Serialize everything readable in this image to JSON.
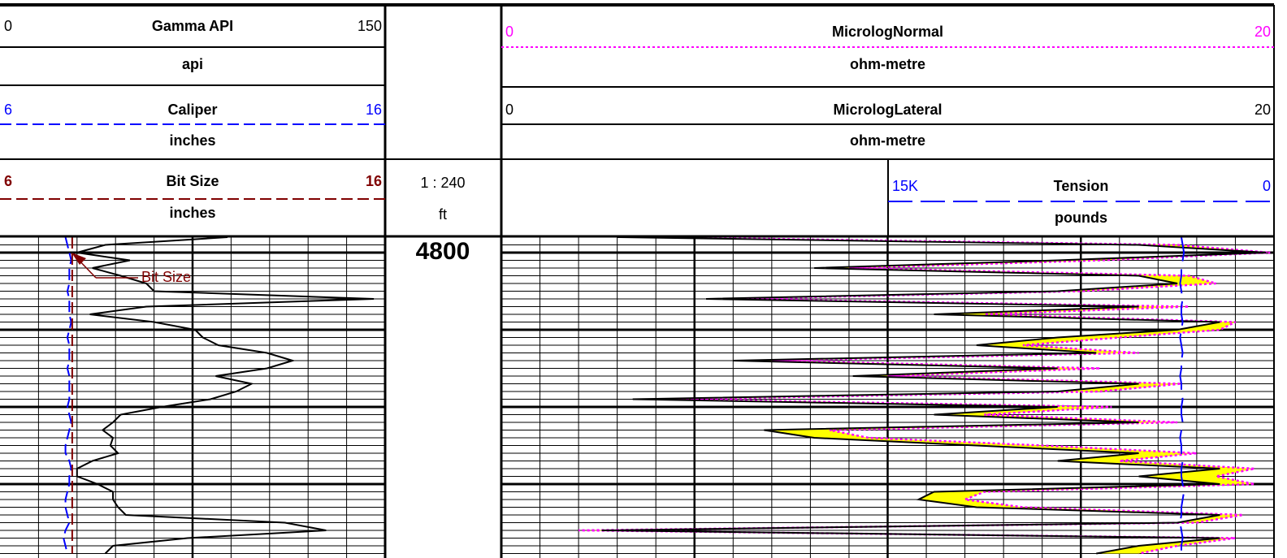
{
  "header": {
    "scale": "1 : 240",
    "depth_unit": "ft"
  },
  "chart_data": [
    {
      "type": "line",
      "orientation": "vertical",
      "x": [
        4796,
        4798,
        4800,
        4802,
        4804,
        4806,
        4808,
        4810,
        4812,
        4814,
        4816,
        4818,
        4820,
        4822,
        4824,
        4826,
        4828,
        4830,
        4832,
        4834,
        4836,
        4838,
        4840,
        4842,
        4844,
        4846,
        4848,
        4850,
        4852,
        4854,
        4856,
        4858,
        4860,
        4862,
        4864,
        4866,
        4868,
        4870,
        4872,
        4874,
        4876,
        4878
      ],
      "ylim": [
        4796,
        4879.16
      ],
      "major_grid": [
        4800,
        4820,
        4840,
        4860
      ],
      "ygrid_step": 2,
      "xgrid_divisions": 10,
      "major_every": 5,
      "depth_labels": [
        4800
      ],
      "series": [
        {
          "name": "Gamma API",
          "unit": "api",
          "color": "#000000",
          "line_style": "solid",
          "lim": [
            0,
            150
          ],
          "values": [
            88.6,
            41,
            30,
            50.6,
            36,
            47,
            57,
            60,
            145.6,
            57,
            35,
            60,
            76,
            79,
            85,
            104,
            114,
            104,
            84,
            98,
            92,
            82,
            63,
            47,
            44,
            40,
            44,
            43,
            46,
            36,
            30,
            30,
            38,
            44,
            44,
            46,
            49,
            111,
            127,
            73,
            44,
            41
          ]
        },
        {
          "name": "Caliper",
          "unit": "inches",
          "color": "#0000ff",
          "line_style": "dashed",
          "lim": [
            6,
            16
          ],
          "values": [
            7.7,
            7.75,
            7.8,
            7.85,
            7.8,
            7.8,
            7.8,
            7.75,
            7.8,
            7.8,
            7.8,
            7.85,
            7.8,
            7.75,
            7.8,
            7.8,
            7.8,
            7.75,
            7.8,
            7.8,
            7.8,
            7.8,
            7.75,
            7.8,
            7.85,
            7.8,
            7.75,
            7.7,
            7.7,
            7.8,
            7.85,
            7.8,
            7.8,
            7.75,
            7.7,
            7.7,
            7.75,
            7.8,
            7.7,
            7.65,
            7.7,
            7.75
          ]
        },
        {
          "name": "Bit Size",
          "unit": "inches",
          "color": "#800000",
          "line_style": "dashed",
          "lim": [
            6,
            16
          ],
          "values": [
            7.875,
            7.875,
            7.875,
            7.875,
            7.875,
            7.875,
            7.875,
            7.875,
            7.875,
            7.875,
            7.875,
            7.875,
            7.875,
            7.875,
            7.875,
            7.875,
            7.875,
            7.875,
            7.875,
            7.875,
            7.875,
            7.875,
            7.875,
            7.875,
            7.875,
            7.875,
            7.875,
            7.875,
            7.875,
            7.875,
            7.875,
            7.875,
            7.875,
            7.875,
            7.875,
            7.875,
            7.875,
            7.875,
            7.875,
            7.875,
            7.875,
            7.875
          ]
        }
      ],
      "annotations": [
        {
          "text": "Bit Size"
        }
      ]
    },
    {
      "type": "line",
      "orientation": "vertical",
      "x": [
        4796,
        4798,
        4800,
        4802,
        4804,
        4806,
        4808,
        4810,
        4812,
        4814,
        4816,
        4818,
        4820,
        4822,
        4824,
        4826,
        4828,
        4830,
        4832,
        4834,
        4836,
        4838,
        4840,
        4842,
        4844,
        4846,
        4848,
        4850,
        4852,
        4854,
        4856,
        4858,
        4860,
        4862,
        4864,
        4866,
        4868,
        4870,
        4872,
        4874,
        4876,
        4878
      ],
      "ylim": [
        4796,
        4879.16
      ],
      "major_grid": [
        4800,
        4820,
        4840,
        4860
      ],
      "ygrid_step": 2,
      "xgrid_divisions": 20,
      "major_every": 5,
      "fill_color": "#ffff00",
      "series": [
        {
          "name": "MicrologNormal",
          "unit": "ohm-metre",
          "color": "#ff00ff",
          "line_style": "dotted",
          "lim": [
            0,
            20
          ],
          "values": [
            4.0,
            17.5,
            19.9,
            15.5,
            9.0,
            17.8,
            18.5,
            15.0,
            6.0,
            17.8,
            12.5,
            19.0,
            18.6,
            16.0,
            13.5,
            16.5,
            7.0,
            15.5,
            10.0,
            17.6,
            15.5,
            4.5,
            15.8,
            12.5,
            17.5,
            8.5,
            9.5,
            14.0,
            18.0,
            16.0,
            19.5,
            18.5,
            19.5,
            12.5,
            12.0,
            13.5,
            19.2,
            18.0,
            2.0,
            19.0,
            17.5,
            16.5
          ]
        },
        {
          "name": "MicrologLateral",
          "unit": "ohm-metre",
          "color": "#000000",
          "line_style": "solid",
          "lim": [
            0,
            20
          ],
          "values": [
            3.0,
            16.5,
            19.8,
            14.4,
            8.1,
            16.5,
            17.5,
            14.4,
            5.3,
            16.5,
            11.2,
            18.6,
            17.5,
            14.4,
            12.3,
            15.4,
            6.0,
            14.4,
            9.1,
            16.5,
            14.4,
            3.4,
            14.4,
            11.2,
            16.5,
            6.8,
            8.1,
            12.3,
            16.5,
            14.4,
            18.6,
            16.5,
            18.6,
            11.2,
            10.8,
            12.3,
            18.6,
            17.5,
            2.6,
            18.6,
            16.5,
            15.4
          ]
        },
        {
          "name": "Tension",
          "unit": "pounds",
          "color": "#0000ff",
          "line_style": "long-dashed",
          "lim": [
            {
              "value": 15000,
              "label": "15K"
            },
            0
          ],
          "values": [
            3600,
            3550,
            3500,
            3550,
            3600,
            3600,
            3650,
            3600,
            3550,
            3600,
            3600,
            3550,
            3600,
            3650,
            3600,
            3550,
            3600,
            3600,
            3650,
            3600,
            3600,
            3550,
            3600,
            3600,
            3550,
            3600,
            3650,
            3600,
            3600,
            3550,
            3600,
            3600,
            3550,
            3500,
            3550,
            3600,
            3600,
            3650,
            3600,
            3550,
            3600,
            3600
          ]
        }
      ]
    }
  ]
}
